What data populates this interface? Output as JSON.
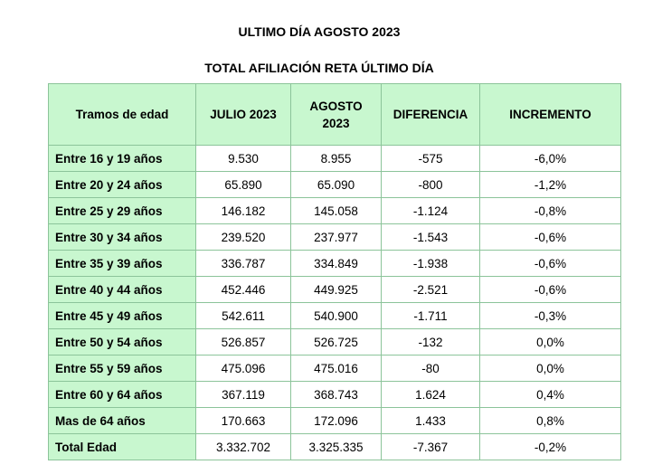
{
  "title": "ULTIMO DÍA AGOSTO 2023",
  "subtitle": "TOTAL AFILIACIÓN RETA ÚLTIMO DÍA",
  "colors": {
    "header_bg": "#c8f7cf",
    "border": "#8cc49a"
  },
  "headers": [
    "Tramos de edad",
    "JULIO 2023",
    "AGOSTO 2023",
    "DIFERENCIA",
    "INCREMENTO"
  ],
  "rows": [
    [
      "Entre 16 y 19 años",
      "9.530",
      "8.955",
      "-575",
      "-6,0%"
    ],
    [
      "Entre 20 y 24 años",
      "65.890",
      "65.090",
      "-800",
      "-1,2%"
    ],
    [
      "Entre 25 y 29 años",
      "146.182",
      "145.058",
      "-1.124",
      "-0,8%"
    ],
    [
      "Entre 30 y 34 años",
      "239.520",
      "237.977",
      "-1.543",
      "-0,6%"
    ],
    [
      "Entre 35 y 39 años",
      "336.787",
      "334.849",
      "-1.938",
      "-0,6%"
    ],
    [
      "Entre 40 y 44 años",
      "452.446",
      "449.925",
      "-2.521",
      "-0,6%"
    ],
    [
      "Entre 45 y 49 años",
      "542.611",
      "540.900",
      "-1.711",
      "-0,3%"
    ],
    [
      "Entre 50 y 54 años",
      "526.857",
      "526.725",
      "-132",
      "0,0%"
    ],
    [
      "Entre 55 y 59 años",
      "475.096",
      "475.016",
      "-80",
      "0,0%"
    ],
    [
      "Entre 60 y 64 años",
      "367.119",
      "368.743",
      "1.624",
      "0,4%"
    ],
    [
      "Mas de 64 años",
      "170.663",
      "172.096",
      "1.433",
      "0,8%"
    ],
    [
      "Total Edad",
      "3.332.702",
      "3.325.335",
      "-7.367",
      "-0,2%"
    ]
  ]
}
